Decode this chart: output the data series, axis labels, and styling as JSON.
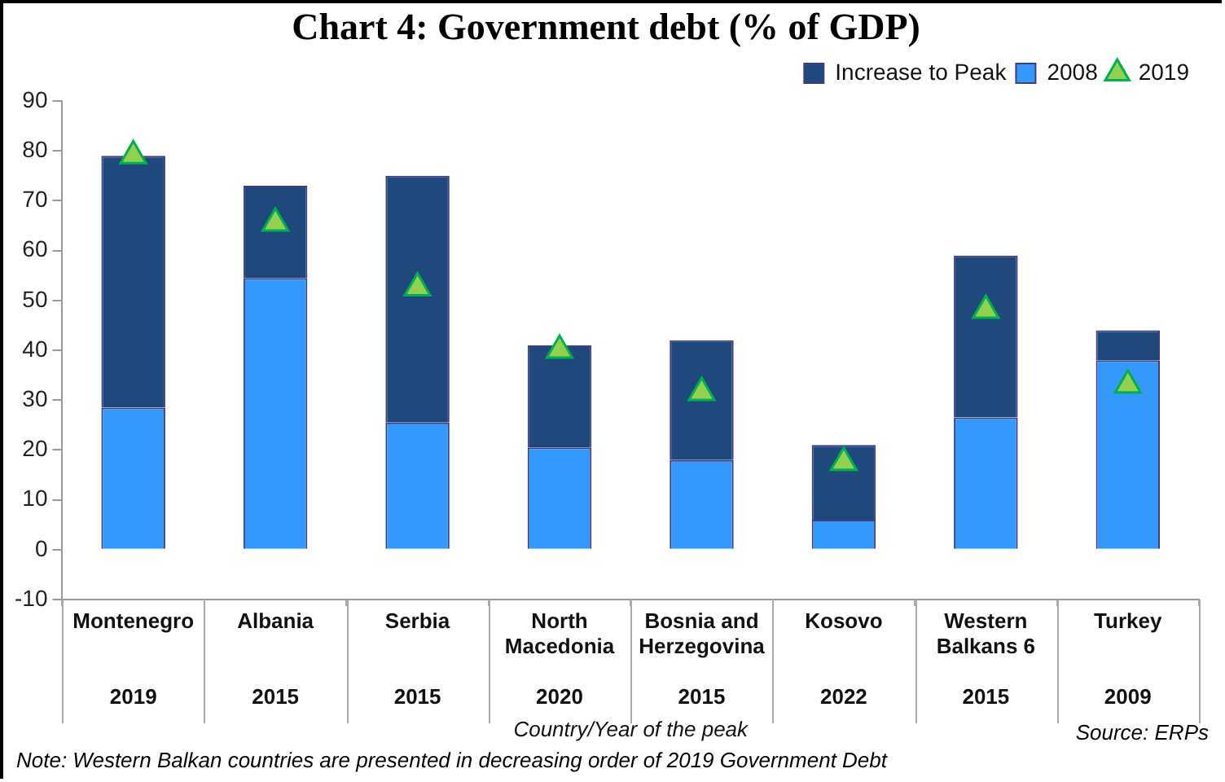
{
  "chart_data": {
    "type": "bar",
    "title": "Chart 4: Government debt (% of GDP)",
    "xlabel": "Country/Year of the peak",
    "categories": [
      "Montenegro\n2019",
      "Albania\n2015",
      "Serbia\n2015",
      "North Macedonia\n2020",
      "Bosnia and Herzegovina\n2015",
      "Kosovo\n2022",
      "Western Balkans 6\n2015",
      "Turkey\n2009"
    ],
    "stacked": true,
    "series": [
      {
        "name": "2008",
        "color": "#3399ff",
        "values": [
          28.5,
          54.5,
          25.5,
          20.5,
          18,
          6,
          26.5,
          38
        ]
      },
      {
        "name": "Increase to Peak",
        "color": "#1f497d",
        "values": [
          50.5,
          18.5,
          49.5,
          20.5,
          24,
          15,
          32.5,
          6
        ]
      },
      {
        "name": "2019",
        "type": "scatter",
        "color": "#92d050",
        "marker": "triangle",
        "x": [
          "Montenegro\n2019",
          "Albania\n2015",
          "Serbia\n2015",
          "North Macedonia\n2020",
          "Bosnia and Herzegovina\n2015",
          "Kosovo\n2022",
          "Western Balkans 6\n2015",
          "Turkey\n2009"
        ],
        "values": [
          79,
          65.5,
          52.5,
          40,
          31.5,
          17.5,
          48,
          33
        ]
      }
    ],
    "ylim": [
      -10,
      90
    ],
    "yticks": [
      -10,
      0,
      10,
      20,
      30,
      40,
      50,
      60,
      70,
      80,
      90
    ],
    "grid": false,
    "legend": "top right",
    "annotations": [
      "Source: ERPs",
      "Note: Western Balkan countries are presented in decreasing order of 2019 Government Debt"
    ]
  }
}
